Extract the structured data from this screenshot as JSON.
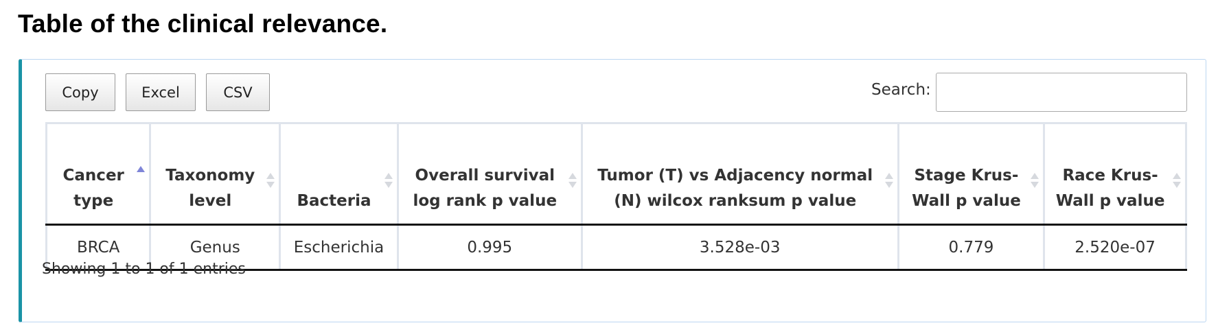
{
  "page": {
    "title": "Table of the clinical relevance."
  },
  "toolbar": {
    "copy_label": "Copy",
    "excel_label": "Excel",
    "csv_label": "CSV"
  },
  "search": {
    "label": "Search:",
    "value": "",
    "placeholder": ""
  },
  "table": {
    "columns": [
      {
        "label": "Cancer type",
        "sort": "ascending"
      },
      {
        "label": "Taxonomy level",
        "sort": "none"
      },
      {
        "label": "Bacteria",
        "sort": "none"
      },
      {
        "label": "Overall survival log rank p value",
        "sort": "none"
      },
      {
        "label": "Tumor (T) vs Adjacency normal (N) wilcox ranksum p value",
        "sort": "none"
      },
      {
        "label": "Stage Krus-Wall p value",
        "sort": "none"
      },
      {
        "label": "Race Krus-Wall p value",
        "sort": "none"
      }
    ],
    "rows": [
      [
        "BRCA",
        "Genus",
        "Escherichia",
        "0.995",
        "3.528e-03",
        "0.779",
        "2.520e-07"
      ]
    ]
  },
  "footer": {
    "info": "Showing 1 to 1 of 1 entries"
  },
  "colors": {
    "panel_accent": "#1a93a6",
    "sort_active": "#7f85d8",
    "sort_inactive": "#d6d9de"
  }
}
